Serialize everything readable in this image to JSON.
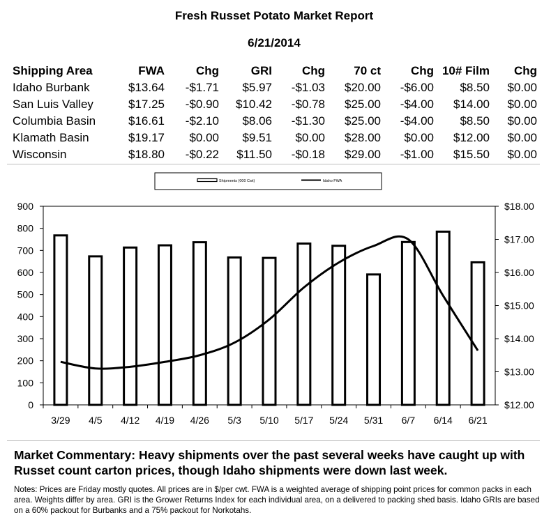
{
  "report": {
    "title": "Fresh Russet Potato Market Report",
    "date": "6/21/2014"
  },
  "table": {
    "headers": [
      "Shipping Area",
      "FWA",
      "Chg",
      "GRI",
      "Chg",
      "70 ct",
      "Chg",
      "10# Film",
      "Chg"
    ],
    "rows": [
      [
        "Idaho Burbank",
        "$13.64",
        "-$1.71",
        "$5.97",
        "-$1.03",
        "$20.00",
        "-$6.00",
        "$8.50",
        "$0.00"
      ],
      [
        "San Luis Valley",
        "$17.25",
        "-$0.90",
        "$10.42",
        "-$0.78",
        "$25.00",
        "-$4.00",
        "$14.00",
        "$0.00"
      ],
      [
        "Columbia Basin",
        "$16.61",
        "-$2.10",
        "$8.06",
        "-$1.30",
        "$25.00",
        "-$4.00",
        "$8.50",
        "$0.00"
      ],
      [
        "Klamath Basin",
        "$19.17",
        "$0.00",
        "$9.51",
        "$0.00",
        "$28.00",
        "$0.00",
        "$12.00",
        "$0.00"
      ],
      [
        "Wisconsin",
        "$18.80",
        "-$0.22",
        "$11.50",
        "-$0.18",
        "$29.00",
        "-$1.00",
        "$15.50",
        "$0.00"
      ]
    ]
  },
  "chart_data": {
    "type": "bar",
    "categories": [
      "3/29",
      "4/5",
      "4/12",
      "4/19",
      "4/26",
      "5/3",
      "5/10",
      "5/17",
      "5/24",
      "5/31",
      "6/7",
      "6/14",
      "6/21"
    ],
    "series": [
      {
        "name": "Shipments (000 Cwt)",
        "type": "bar",
        "axis": "left",
        "values": [
          768,
          673,
          713,
          723,
          737,
          668,
          666,
          731,
          721,
          591,
          738,
          785,
          646
        ]
      },
      {
        "name": "Idaho FWA",
        "type": "line",
        "axis": "right",
        "values": [
          13.3,
          13.1,
          13.15,
          13.3,
          13.5,
          13.88,
          14.58,
          15.55,
          16.3,
          16.8,
          17.0,
          15.3,
          13.64
        ]
      }
    ],
    "y_left": {
      "range": [
        0,
        900
      ],
      "ticks": [
        "0",
        "100",
        "200",
        "300",
        "400",
        "500",
        "600",
        "700",
        "800",
        "900"
      ]
    },
    "y_right": {
      "range": [
        12,
        18
      ],
      "ticks": [
        "$12.00",
        "$13.00",
        "$14.00",
        "$15.00",
        "$16.00",
        "$17.00",
        "$18.00"
      ]
    },
    "grid": false,
    "legend": "top"
  },
  "commentary": "Market Commentary: Heavy shipments over the past several weeks have caught up with Russet count carton prices, though Idaho shipments were down last week.",
  "notes": "Notes: Prices are Friday mostly quotes. All prices are in $/per cwt. FWA is a weighted average of shipping point prices for  common packs in each area. Weights differ by area. GRI is the Grower Returns Index for each individual area, on a delivered to packing shed basis. Idaho GRIs are based on a 60% packout for Burbanks and a 75% packout for Norkotahs."
}
